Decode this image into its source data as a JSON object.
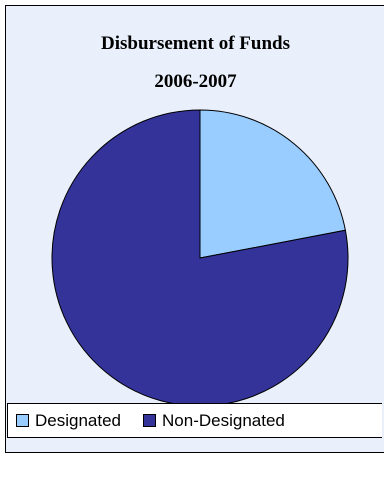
{
  "chart_data": {
    "type": "pie",
    "title": "Disbursement of Funds",
    "subtitle": "2006-2007",
    "categories": [
      "Designated",
      "Non-Designated"
    ],
    "values": [
      0.22,
      0.78
    ],
    "colors": [
      "#99ccff",
      "#333399"
    ],
    "legend": "bottom"
  }
}
